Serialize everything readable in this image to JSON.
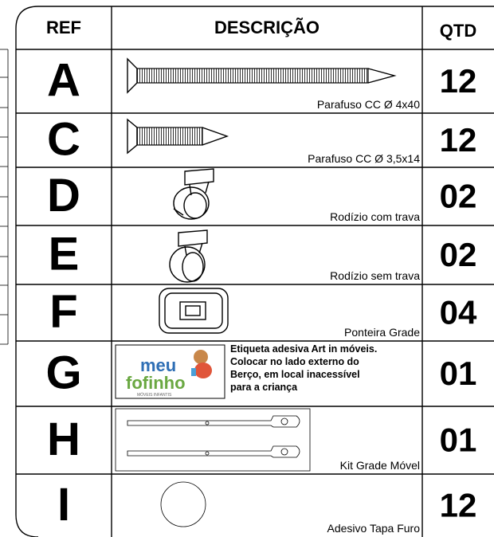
{
  "header": {
    "ref": "REF",
    "description": "DESCRIÇÃO",
    "quantity": "QTD"
  },
  "rows": [
    {
      "ref": "A",
      "description": "Parafuso CC Ø 4x40",
      "quantity": "12"
    },
    {
      "ref": "C",
      "description": "Parafuso CC Ø 3,5x14",
      "quantity": "12"
    },
    {
      "ref": "D",
      "description": "Rodízio com trava",
      "quantity": "02"
    },
    {
      "ref": "E",
      "description": "Rodízio sem trava",
      "quantity": "02"
    },
    {
      "ref": "F",
      "description": "Ponteira Grade",
      "quantity": "04"
    },
    {
      "ref": "G",
      "description": [
        "Etiqueta adesiva Art in móveis.",
        "Colocar no lado externo do",
        "Berço, em local inacessível",
        "para a criança"
      ],
      "quantity": "01"
    },
    {
      "ref": "H",
      "description": "Kit Grade Móvel",
      "quantity": "01"
    },
    {
      "ref": "I",
      "description": "Adesivo Tapa Furo",
      "quantity": "12"
    }
  ],
  "logo": {
    "line1": "meu",
    "line2": "fofinho",
    "tagline": "MÓVEIS INFANTIS"
  }
}
